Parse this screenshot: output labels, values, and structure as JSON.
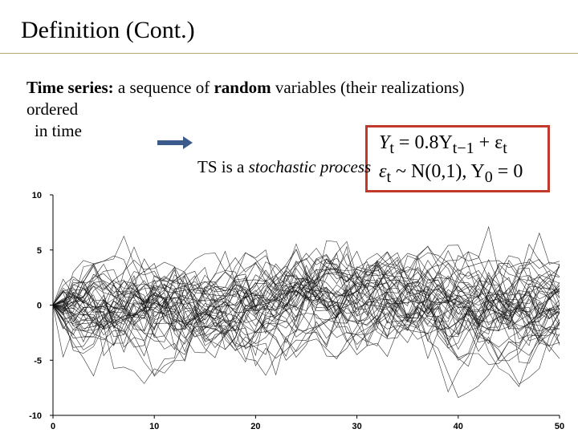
{
  "slide": {
    "title": "Definition (Cont.)",
    "body": {
      "term": "Time series:",
      "line1_a": " a sequence of ",
      "line1_b": "random",
      "line1_c": " variables (their realizations)",
      "line2": "ordered",
      "line3": "in time"
    },
    "ts_note_prefix": "TS is a ",
    "ts_note_em": "stochastic process"
  },
  "equation": {
    "line1_lhs": "Y",
    "line1_lhs_sub": "t",
    "line1_rhs": " = 0.8Y",
    "line1_rhs_sub": "t−1",
    "line1_tail": " + ε",
    "line1_tail_sub": "t",
    "line2_a": "ε",
    "line2_a_sub": "t",
    "line2_b": " ~ N(0,1), Y",
    "line2_b_sub": "0",
    "line2_c": " = 0"
  },
  "colors": {
    "box_border": "#c0392b",
    "arrow": "#3b5b8c",
    "rule": "#b9a77c"
  },
  "chart_data": {
    "type": "line",
    "title": "",
    "xlabel": "",
    "ylabel": "",
    "xlim": [
      0,
      50
    ],
    "ylim": [
      -10,
      10
    ],
    "x_ticks": [
      0,
      10,
      20,
      30,
      40,
      50
    ],
    "y_ticks": [
      10,
      5,
      0,
      -5,
      -10
    ],
    "x_tick_labels": [
      "0",
      "10",
      "20",
      "30",
      "40",
      "50"
    ],
    "y_tick_labels": [
      "10",
      "5",
      "0",
      "-5",
      "-10"
    ],
    "grid": false,
    "series_count": 50,
    "model": {
      "phi": 0.8,
      "noise": "N(0,1)",
      "y0": 0,
      "length": 51
    }
  }
}
